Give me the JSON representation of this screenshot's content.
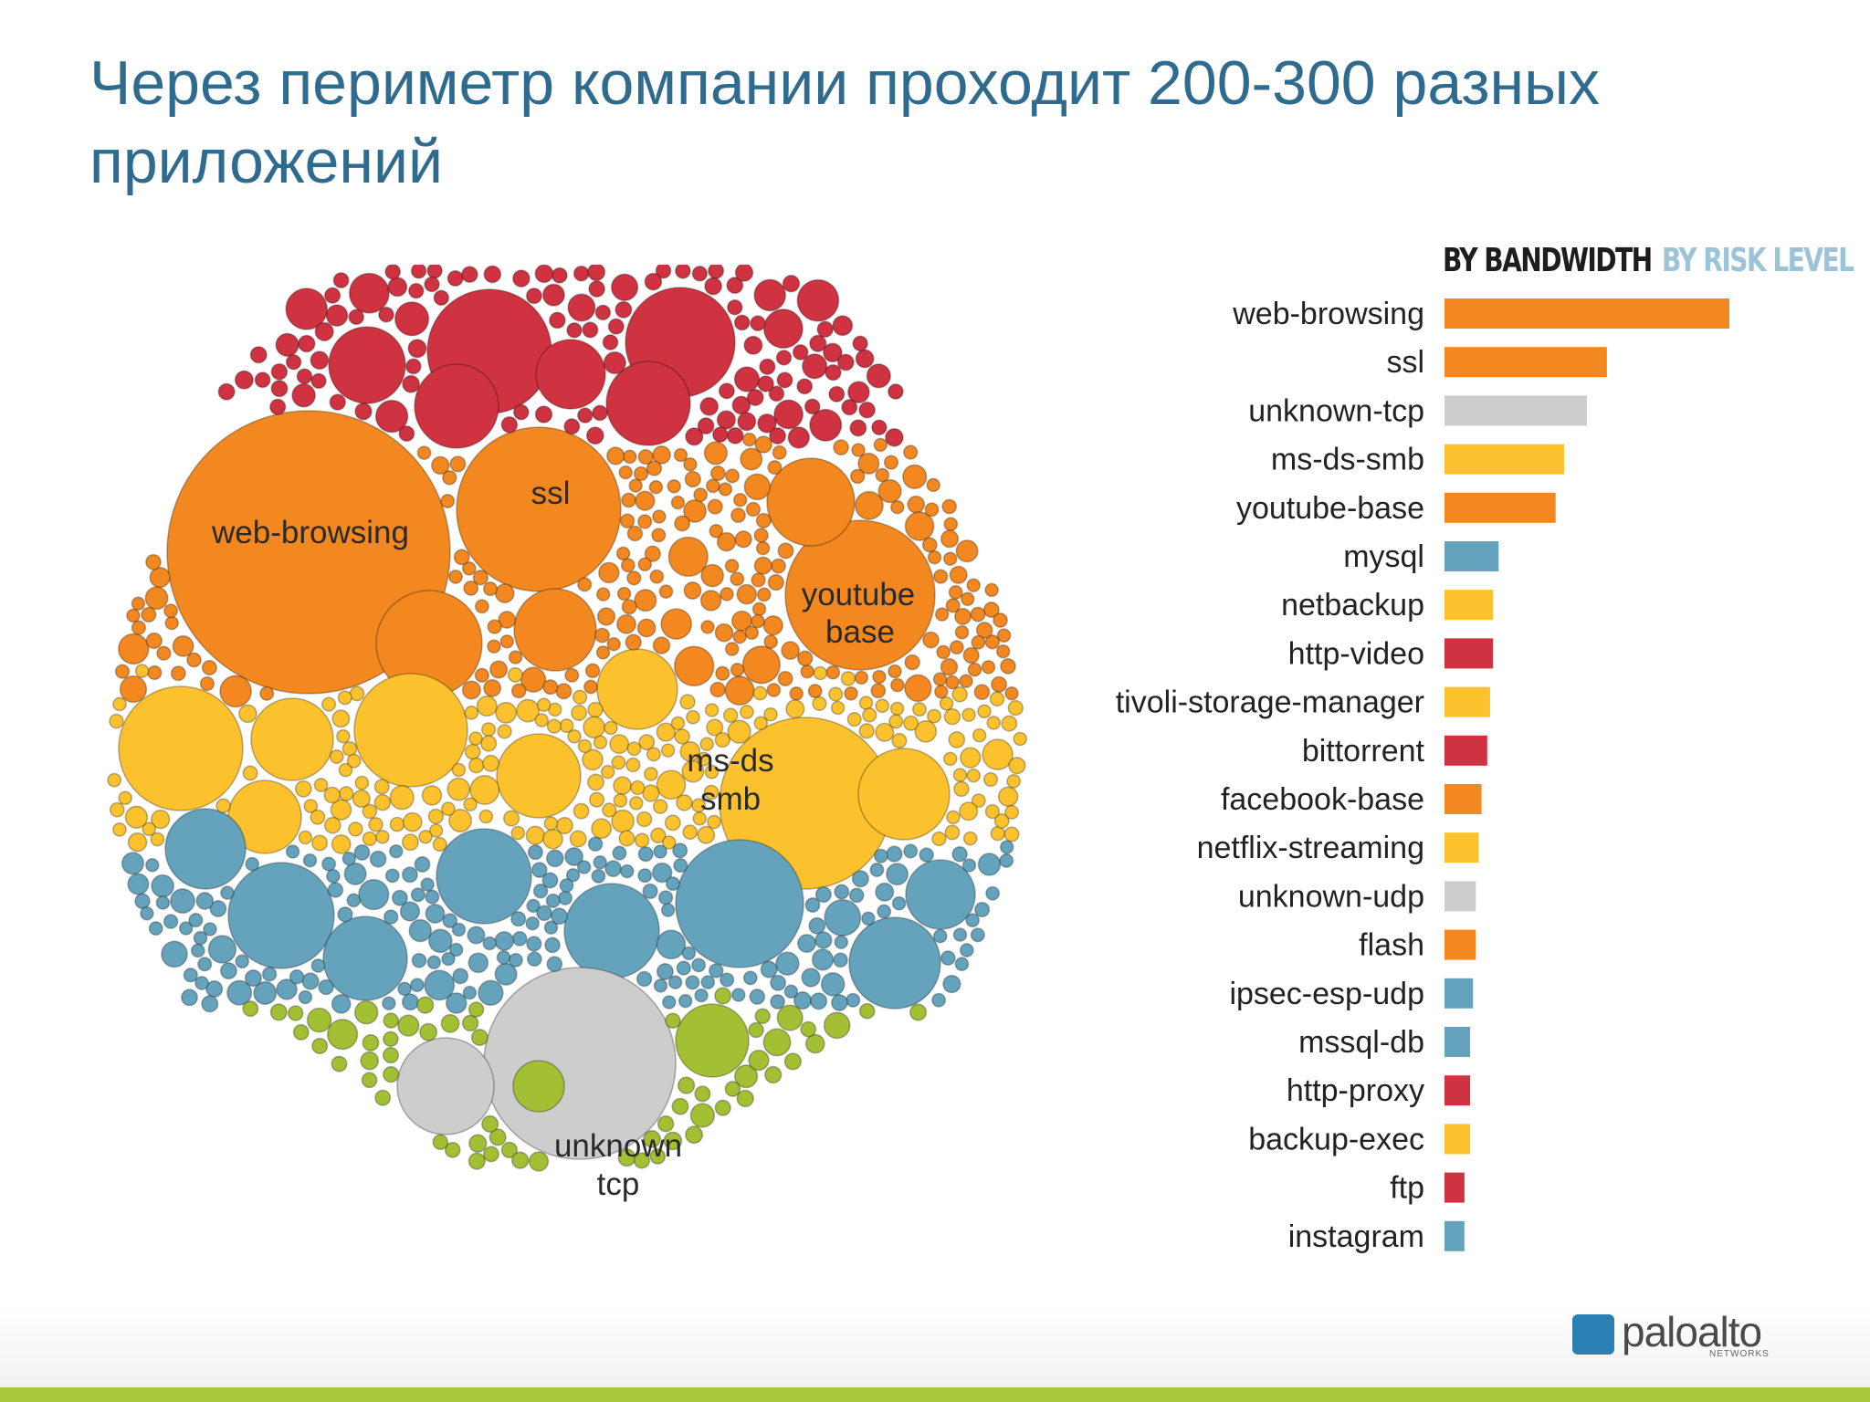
{
  "title": "Через периметр компании проходит 200-300 разных приложений",
  "tabs": {
    "bandwidth": "BY BANDWIDTH",
    "risk": "BY RISK LEVEL"
  },
  "risk_colors": {
    "red": "#cf3341",
    "orange": "#f2881f",
    "yellow": "#fbc22d",
    "blue": "#65a3bc",
    "green": "#a3bf33",
    "gray": "#cdcdcd"
  },
  "bubble_labels": {
    "web_browsing": "web-browsing",
    "ssl": "ssl",
    "youtube_1": "youtube",
    "youtube_2": "base",
    "msds_1": "ms-ds",
    "msds_2": "smb",
    "unknown_1": "unknown",
    "unknown_2": "tcp"
  },
  "logo": {
    "text": "paloalto",
    "sub": "NETWORKS"
  },
  "chart_data": {
    "type": "bar",
    "orientation": "horizontal",
    "categories": [
      "web-browsing",
      "ssl",
      "unknown-tcp",
      "ms-ds-smb",
      "youtube-base",
      "mysql",
      "netbackup",
      "http-video",
      "tivoli-storage-manager",
      "bittorrent",
      "facebook-base",
      "netflix-streaming",
      "unknown-udp",
      "flash",
      "ipsec-esp-udp",
      "mssql-db",
      "http-proxy",
      "backup-exec",
      "ftp",
      "instagram"
    ],
    "values": [
      100,
      57,
      50,
      42,
      39,
      19,
      17,
      17,
      16,
      15,
      13,
      12,
      11,
      11,
      10,
      9,
      9,
      9,
      7,
      7
    ],
    "risk": [
      "orange",
      "orange",
      "gray",
      "yellow",
      "orange",
      "blue",
      "yellow",
      "red",
      "yellow",
      "red",
      "orange",
      "yellow",
      "gray",
      "orange",
      "blue",
      "blue",
      "red",
      "yellow",
      "red",
      "blue"
    ]
  }
}
